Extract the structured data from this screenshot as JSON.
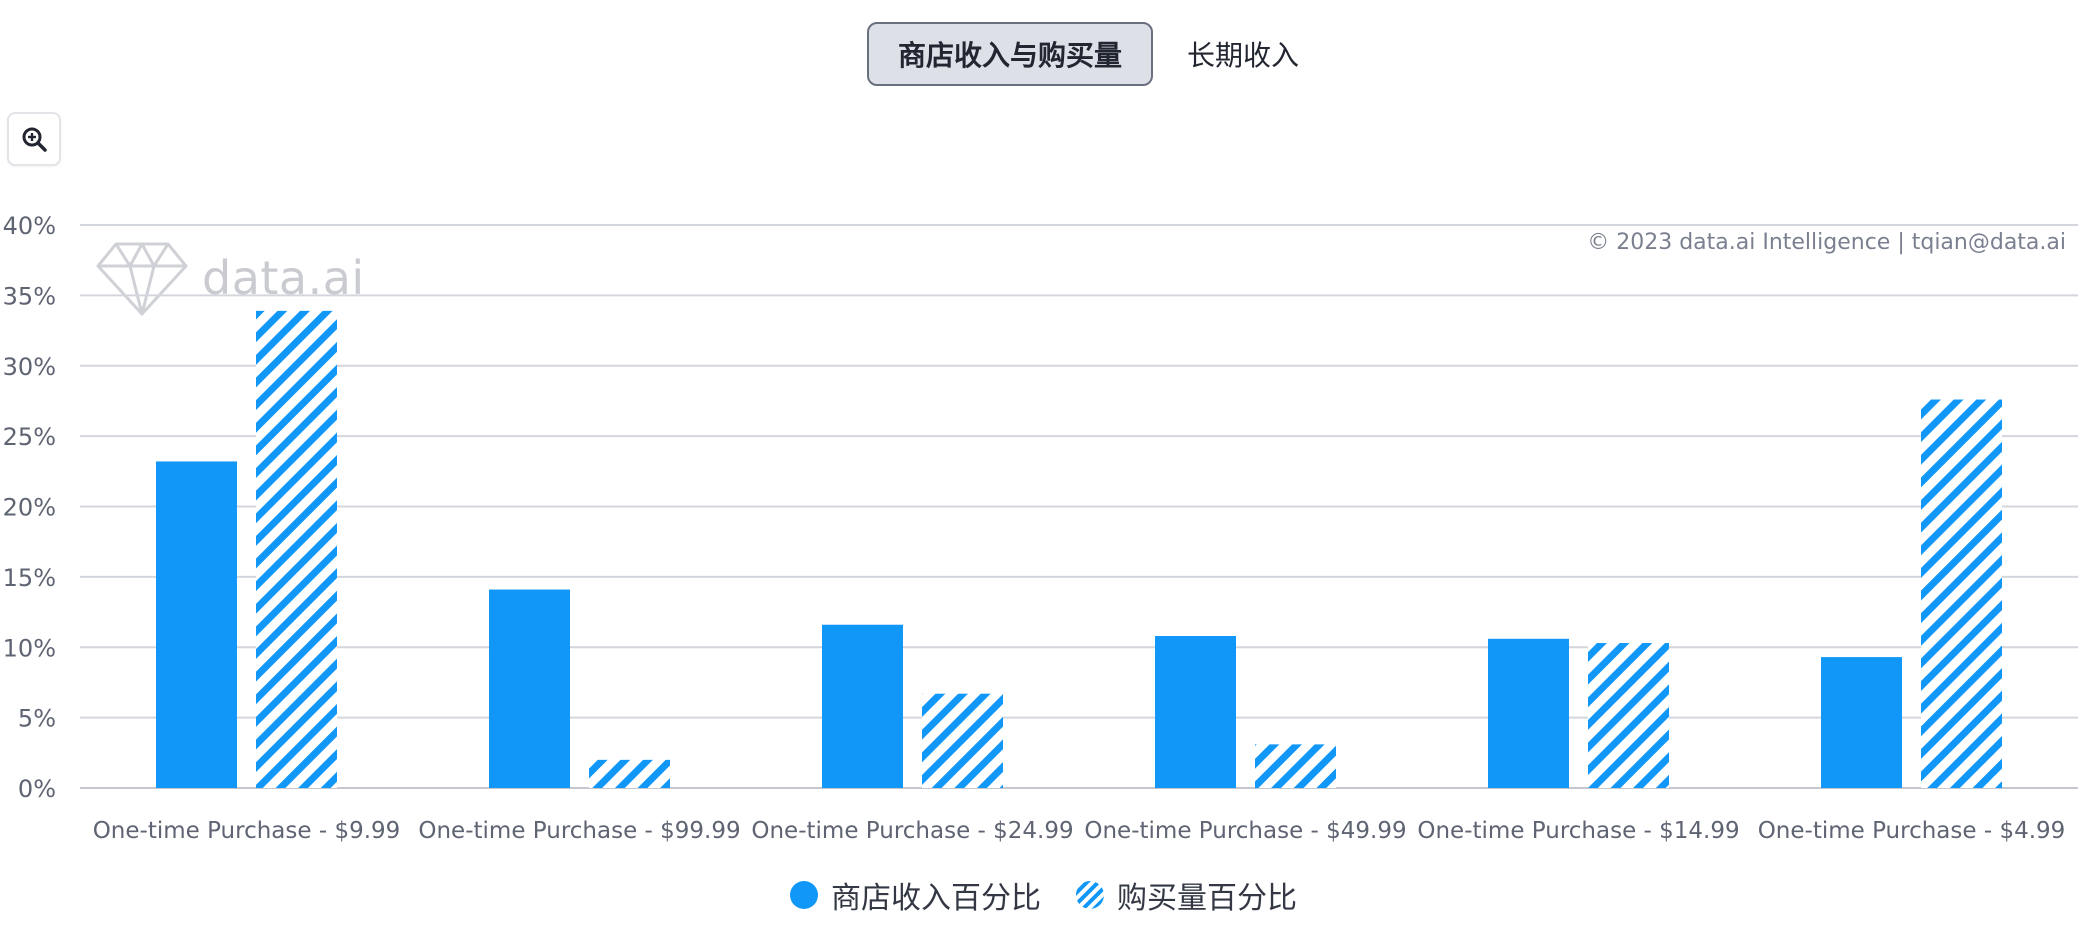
{
  "tabs": [
    {
      "label": "商店收入与购买量",
      "active": true
    },
    {
      "label": "长期收入",
      "active": false
    }
  ],
  "toolbar": {
    "zoom_icon": "zoom-in-icon"
  },
  "watermark": {
    "text": "data.ai"
  },
  "copyright": "© 2023 data.ai Intelligence | tqian@data.ai",
  "chart_data": {
    "type": "bar",
    "categories": [
      "One-time Purchase - $9.99",
      "One-time Purchase - $99.99",
      "One-time Purchase - $24.99",
      "One-time Purchase - $49.99",
      "One-time Purchase - $14.99",
      "One-time Purchase - $4.99"
    ],
    "series": [
      {
        "name": "商店收入百分比",
        "color": "#1197f8",
        "pattern": "solid",
        "values": [
          23.2,
          14.1,
          11.6,
          10.8,
          10.6,
          9.3
        ]
      },
      {
        "name": "购买量百分比",
        "color": "#1197f8",
        "pattern": "hatched",
        "values": [
          33.9,
          2.0,
          6.7,
          3.1,
          10.3,
          27.6
        ]
      }
    ],
    "yticks": [
      "0%",
      "5%",
      "10%",
      "15%",
      "20%",
      "25%",
      "30%",
      "35%",
      "40%"
    ],
    "ylim": [
      0,
      40
    ],
    "grid": true,
    "legend_position": "bottom"
  }
}
